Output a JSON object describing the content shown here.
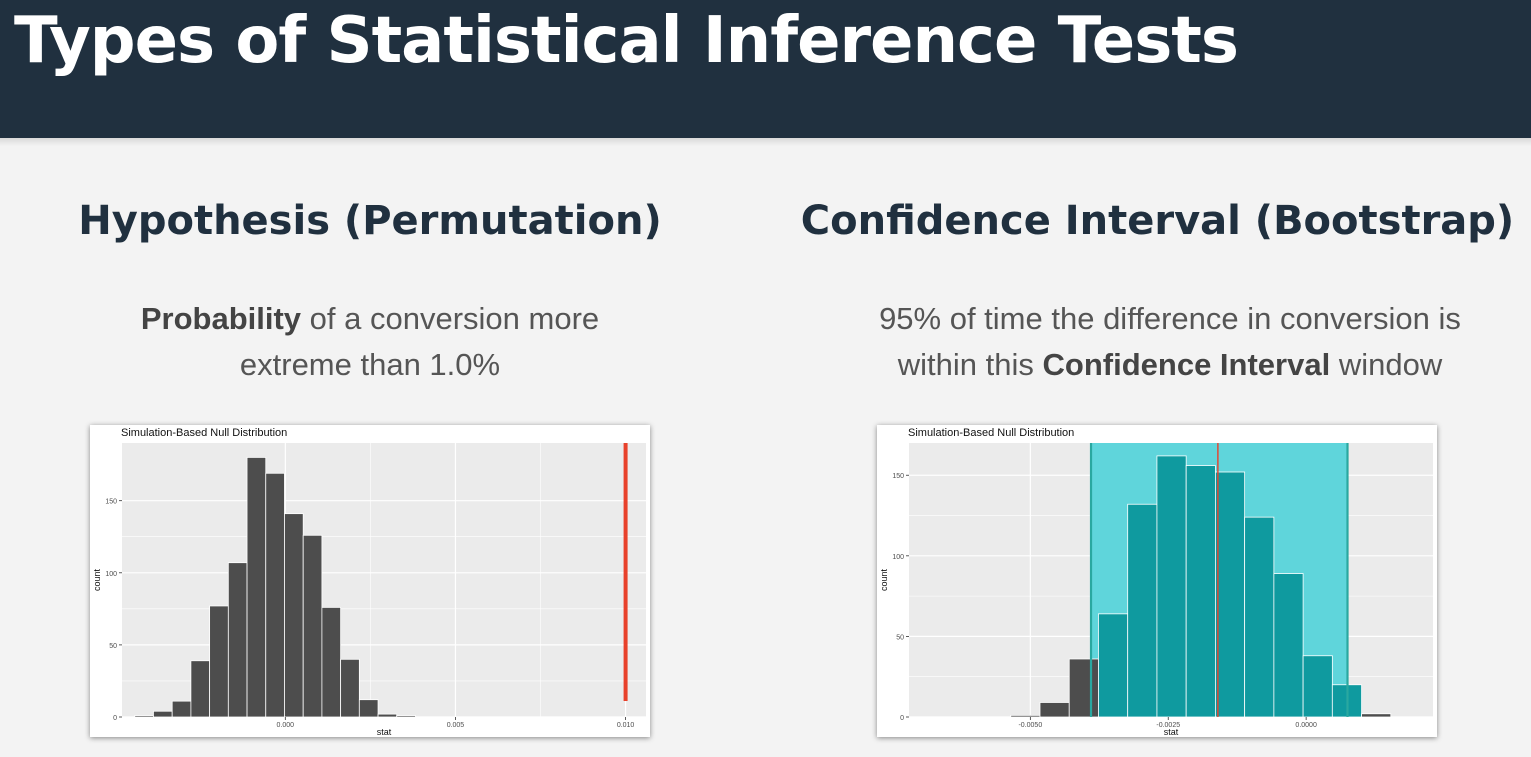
{
  "header": {
    "title": "Types of Statistical Inference Tests"
  },
  "left": {
    "title": "Hypothesis (Permutation)",
    "desc_bold": "Probability",
    "desc_line1_rest": " of a conversion more",
    "desc_line2": "extreme than 1.0%"
  },
  "right": {
    "title": "Confidence Interval (Bootstrap)",
    "desc_line1": "95% of time the difference in conversion is",
    "desc_line2_pre": "within this ",
    "desc_bold": "Confidence Interval",
    "desc_line2_post": " window"
  },
  "colors": {
    "bar": "#4d4d4d",
    "panel": "#ebebeb",
    "obs_line": "#e8412b",
    "ci_fill": "#5fd5db",
    "ci_bar": "#0f9a9f",
    "ci_edge": "#2aa8a0",
    "center_line": "#e8412b"
  },
  "chart_data": [
    {
      "type": "bar",
      "title": "Simulation-Based Null Distribution",
      "xlabel": "stat",
      "ylabel": "count",
      "xlim": [
        -0.0048,
        0.0106
      ],
      "ylim": [
        0,
        190
      ],
      "xticks": [
        0.0,
        0.005,
        0.01
      ],
      "xtick_labels": [
        "0.000",
        "0.005",
        "0.010"
      ],
      "yticks": [
        0,
        50,
        100,
        150
      ],
      "ytick_labels": [
        "0",
        "50",
        "100",
        "150"
      ],
      "bin_width": 0.00055,
      "bin_centers": [
        -0.00415,
        -0.0036,
        -0.00305,
        -0.0025,
        -0.00195,
        -0.0014,
        -0.00085,
        -0.0003,
        0.00025,
        0.0008,
        0.00135,
        0.0019,
        0.00245,
        0.003,
        0.00355,
        0.0041
      ],
      "values": [
        1,
        4,
        11,
        39,
        77,
        107,
        180,
        169,
        141,
        126,
        76,
        40,
        12,
        2,
        1,
        0
      ],
      "observed_stat": 0.01
    },
    {
      "type": "bar",
      "title": "Simulation-Based Null Distribution",
      "xlabel": "stat",
      "ylabel": "count",
      "xlim": [
        -0.0072,
        0.0023
      ],
      "ylim": [
        0,
        170
      ],
      "xticks": [
        -0.005,
        -0.0025,
        0.0
      ],
      "xtick_labels": [
        "-0.0050",
        "-0.0025",
        "0.0000"
      ],
      "yticks": [
        0,
        50,
        100,
        150
      ],
      "ytick_labels": [
        "0",
        "50",
        "100",
        "150"
      ],
      "bin_width": 0.00053,
      "bin_centers": [
        -0.00615,
        -0.00562,
        -0.00509,
        -0.00456,
        -0.00403,
        -0.0035,
        -0.00297,
        -0.00244,
        -0.00191,
        -0.00138,
        -0.00085,
        -0.00032,
        0.00021,
        0.00074,
        0.00127
      ],
      "values": [
        0,
        0,
        1,
        9,
        36,
        64,
        132,
        162,
        156,
        152,
        124,
        89,
        38,
        20,
        2
      ],
      "ci": [
        -0.0039,
        0.00075
      ],
      "center_line": -0.0016
    }
  ]
}
